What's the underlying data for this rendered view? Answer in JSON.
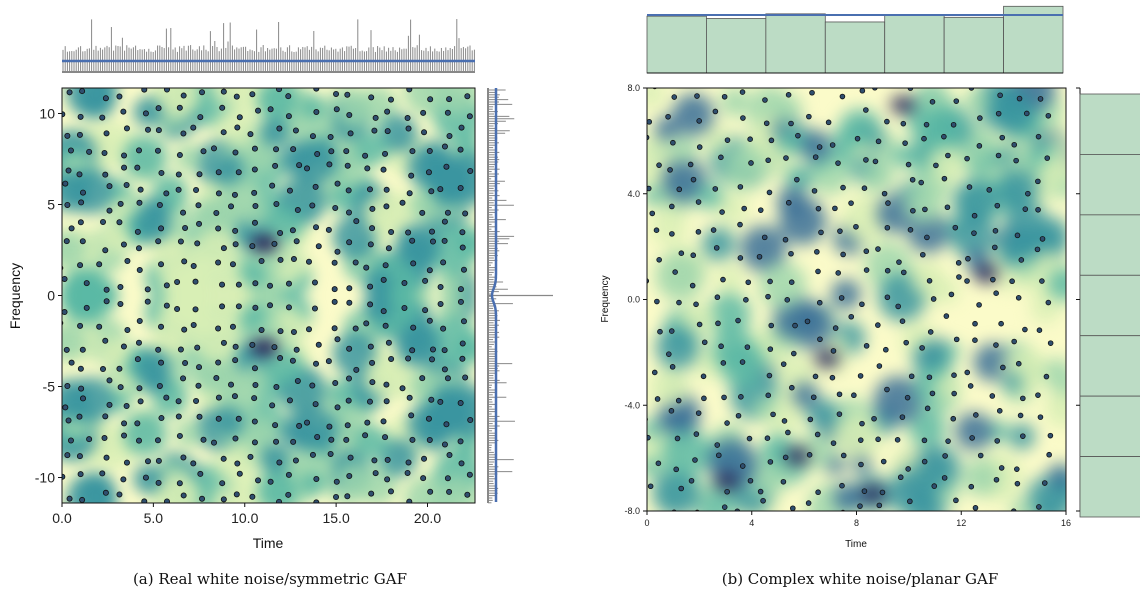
{
  "colors": {
    "marginal_line": "#4a6fb0",
    "marginal_hist": "#888888",
    "hist_fill": "#bcdcc5",
    "hist_edge": "#555555",
    "zero_marker_fill": "#2f4f6f",
    "zero_marker_edge": "#111111",
    "colormap": [
      "#fbfbc9",
      "#d8efb5",
      "#9ed6ad",
      "#5bb8a5",
      "#3a95a0",
      "#3a6f98",
      "#3c4e87",
      "#2d2c5c"
    ]
  },
  "chart_data": [
    {
      "type": "heatmap",
      "title": "",
      "xlabel": "Time",
      "ylabel": "Frequency",
      "xlim": [
        0,
        22.6
      ],
      "ylim": [
        -11.4,
        11.4
      ],
      "xticks": [
        "0.0",
        "5.0",
        "10.0",
        "15.0",
        "20.0"
      ],
      "yticks": [
        "10",
        "5",
        "0",
        "-5",
        "-10"
      ],
      "caption": "(a)  Real white noise/symmetric GAF",
      "marginals": {
        "top": "spectrogram time-marginal histogram",
        "right": "spectrogram frequency-marginal histogram"
      },
      "symmetric_about_zero": true,
      "zeros_approx_count": 480
    },
    {
      "type": "heatmap",
      "title": "",
      "xlabel": "Time",
      "ylabel": "Frequency",
      "xlim": [
        0,
        16
      ],
      "ylim": [
        -8,
        8
      ],
      "xticks": [
        "0",
        "4",
        "8",
        "12",
        "16"
      ],
      "yticks": [
        "8.0",
        "4.0",
        "0.0",
        "-4.0",
        "-8.0"
      ],
      "caption": "(b)  Complex white noise/planar GAF",
      "marginals": {
        "top_histogram_heights": [
          0.98,
          0.94,
          1.02,
          0.88,
          1.0,
          0.96,
          1.15
        ],
        "reference_line": 1.0,
        "right_histogram_bins": 7
      },
      "zeros_approx_count": 330
    }
  ]
}
